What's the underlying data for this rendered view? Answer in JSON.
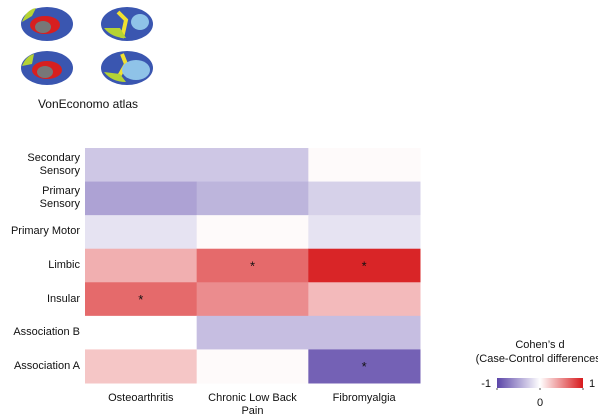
{
  "chart_data": {
    "type": "heatmap",
    "caption": "VonEconomo atlas",
    "rows": [
      "Secondary Sensory",
      "Primary Sensory",
      "Primary Motor",
      "Limbic",
      "Insular",
      "Association B",
      "Association A"
    ],
    "categories": [
      "Osteoarthritis",
      "Chronic Low Back Pain",
      "Fibromyalgia"
    ],
    "values": [
      [
        -0.3,
        -0.3,
        0.02
      ],
      [
        -0.5,
        -0.4,
        -0.25
      ],
      [
        -0.15,
        0.02,
        -0.15
      ],
      [
        0.35,
        0.65,
        0.95
      ],
      [
        0.65,
        0.5,
        0.3
      ],
      [
        0.0,
        -0.35,
        -0.35
      ],
      [
        0.25,
        0.02,
        -0.85
      ]
    ],
    "markers": [
      {
        "row": 3,
        "col": 1,
        "label": "*"
      },
      {
        "row": 3,
        "col": 2,
        "label": "*"
      },
      {
        "row": 4,
        "col": 0,
        "label": "*"
      },
      {
        "row": 6,
        "col": 2,
        "label": "*"
      }
    ],
    "colorbar": {
      "title": "Cohen’s d",
      "subtitle": "(Case-Control differences)",
      "lim": [
        -1,
        1
      ],
      "ticks": [
        -1,
        0,
        1
      ],
      "colors": [
        "#5b45a8",
        "#ffffff",
        "#d7191c"
      ]
    }
  }
}
